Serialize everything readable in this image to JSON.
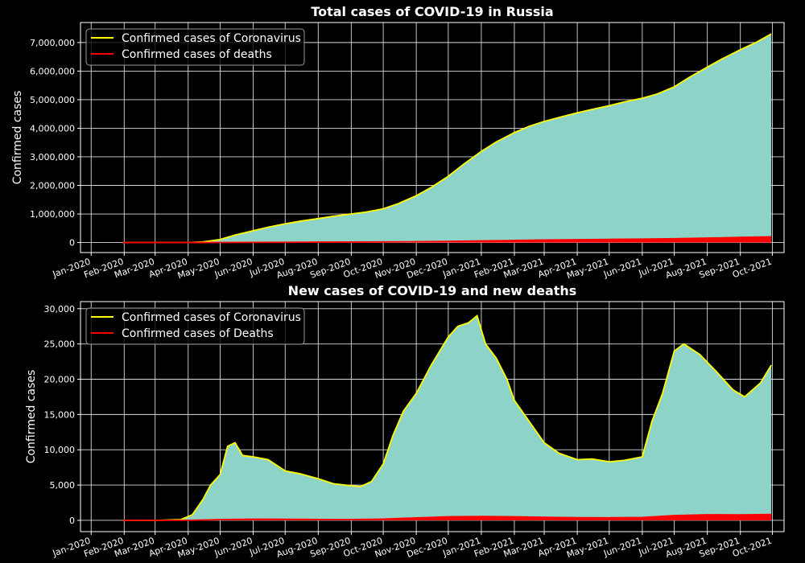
{
  "chart_data": [
    {
      "type": "area",
      "title": "Total cases of COVID-19 in Russia",
      "xlabel": "",
      "ylabel": "Confirmed cases",
      "x_ticks": [
        "Jan-2020",
        "Feb-2020",
        "Mar-2020",
        "Apr-2020",
        "May-2020",
        "Jun-2020",
        "Jul-2020",
        "Aug-2020",
        "Sep-2020",
        "Oct-2020",
        "Nov-2020",
        "Dec-2020",
        "Jan-2021",
        "Feb-2021",
        "Mar-2021",
        "Apr-2021",
        "May-2021",
        "Jun-2021",
        "Jul-2021",
        "Aug-2021",
        "Sep-2021",
        "Oct-2021"
      ],
      "y_ticks": [
        "0",
        "1,000,000",
        "2,000,000",
        "3,000,000",
        "4,000,000",
        "5,000,000",
        "6,000,000",
        "7,000,000"
      ],
      "ylim": [
        -350000,
        7700000
      ],
      "xlim": [
        "2019-12-22",
        "2021-10-12"
      ],
      "grid": true,
      "legend_position": "top-left",
      "series": [
        {
          "name": "Confirmed cases of Coronavirus",
          "color": "#ffff00",
          "fill": "#8dd3c7",
          "points": [
            [
              "2020-01-31",
              0
            ],
            [
              "2020-03-01",
              10
            ],
            [
              "2020-04-01",
              2800
            ],
            [
              "2020-04-15",
              24000
            ],
            [
              "2020-05-01",
              106000
            ],
            [
              "2020-05-15",
              262000
            ],
            [
              "2020-06-01",
              415000
            ],
            [
              "2020-06-15",
              537000
            ],
            [
              "2020-07-01",
              655000
            ],
            [
              "2020-07-15",
              746000
            ],
            [
              "2020-08-01",
              840000
            ],
            [
              "2020-08-15",
              918000
            ],
            [
              "2020-09-01",
              1000000
            ],
            [
              "2020-09-15",
              1069000
            ],
            [
              "2020-10-01",
              1180000
            ],
            [
              "2020-10-15",
              1360000
            ],
            [
              "2020-11-01",
              1640000
            ],
            [
              "2020-11-15",
              1930000
            ],
            [
              "2020-12-01",
              2320000
            ],
            [
              "2020-12-15",
              2730000
            ],
            [
              "2021-01-01",
              3190000
            ],
            [
              "2021-01-15",
              3520000
            ],
            [
              "2021-02-01",
              3850000
            ],
            [
              "2021-02-15",
              4070000
            ],
            [
              "2021-03-01",
              4240000
            ],
            [
              "2021-03-15",
              4380000
            ],
            [
              "2021-04-01",
              4540000
            ],
            [
              "2021-04-15",
              4660000
            ],
            [
              "2021-05-01",
              4790000
            ],
            [
              "2021-05-15",
              4920000
            ],
            [
              "2021-06-01",
              5050000
            ],
            [
              "2021-06-15",
              5200000
            ],
            [
              "2021-07-01",
              5450000
            ],
            [
              "2021-07-15",
              5780000
            ],
            [
              "2021-08-01",
              6140000
            ],
            [
              "2021-08-15",
              6430000
            ],
            [
              "2021-09-01",
              6750000
            ],
            [
              "2021-09-15",
              6990000
            ],
            [
              "2021-09-30",
              7300000
            ]
          ]
        },
        {
          "name": "Confirmed cases of deaths",
          "color": "#ff0000",
          "fill": "#ff0000",
          "points": [
            [
              "2020-01-31",
              0
            ],
            [
              "2020-04-01",
              20
            ],
            [
              "2020-05-01",
              1000
            ],
            [
              "2020-06-01",
              5000
            ],
            [
              "2020-07-01",
              9500
            ],
            [
              "2020-08-01",
              14000
            ],
            [
              "2020-09-01",
              17500
            ],
            [
              "2020-10-01",
              21000
            ],
            [
              "2020-11-01",
              28500
            ],
            [
              "2020-12-01",
              40500
            ],
            [
              "2021-01-01",
              58000
            ],
            [
              "2021-02-01",
              73500
            ],
            [
              "2021-03-01",
              87500
            ],
            [
              "2021-04-01",
              100000
            ],
            [
              "2021-05-01",
              111000
            ],
            [
              "2021-06-01",
              121000
            ],
            [
              "2021-07-01",
              135000
            ],
            [
              "2021-08-01",
              155000
            ],
            [
              "2021-09-01",
              179000
            ],
            [
              "2021-09-30",
              201000
            ]
          ]
        }
      ]
    },
    {
      "type": "area",
      "title": "New cases of COVID-19 and new deaths",
      "xlabel": "",
      "ylabel": "Confirmed cases",
      "x_ticks": [
        "Jan-2020",
        "Feb-2020",
        "Mar-2020",
        "Apr-2020",
        "May-2020",
        "Jun-2020",
        "Jul-2020",
        "Aug-2020",
        "Sep-2020",
        "Oct-2020",
        "Nov-2020",
        "Dec-2020",
        "Jan-2021",
        "Feb-2021",
        "Mar-2021",
        "Apr-2021",
        "May-2021",
        "Jun-2021",
        "Jul-2021",
        "Aug-2021",
        "Sep-2021",
        "Oct-2021"
      ],
      "y_ticks": [
        "0",
        "5,000",
        "10,000",
        "15,000",
        "20,000",
        "25,000",
        "30,000"
      ],
      "ylim": [
        -1600,
        31000
      ],
      "xlim": [
        "2019-12-22",
        "2021-10-12"
      ],
      "grid": true,
      "legend_position": "top-left",
      "series": [
        {
          "name": "Confirmed cases of Coronavirus",
          "color": "#ffff00",
          "fill": "#8dd3c7",
          "points": [
            [
              "2020-01-31",
              0
            ],
            [
              "2020-03-01",
              0
            ],
            [
              "2020-03-25",
              100
            ],
            [
              "2020-04-05",
              800
            ],
            [
              "2020-04-15",
              3000
            ],
            [
              "2020-04-22",
              5000
            ],
            [
              "2020-05-01",
              6500
            ],
            [
              "2020-05-08",
              10500
            ],
            [
              "2020-05-15",
              11000
            ],
            [
              "2020-05-22",
              9200
            ],
            [
              "2020-06-01",
              9000
            ],
            [
              "2020-06-15",
              8600
            ],
            [
              "2020-07-01",
              7000
            ],
            [
              "2020-07-15",
              6600
            ],
            [
              "2020-08-01",
              5900
            ],
            [
              "2020-08-15",
              5200
            ],
            [
              "2020-09-01",
              4900
            ],
            [
              "2020-09-10",
              4800
            ],
            [
              "2020-09-20",
              5500
            ],
            [
              "2020-10-01",
              8000
            ],
            [
              "2020-10-10",
              12000
            ],
            [
              "2020-10-20",
              15500
            ],
            [
              "2020-11-01",
              18000
            ],
            [
              "2020-11-15",
              22000
            ],
            [
              "2020-12-01",
              26000
            ],
            [
              "2020-12-10",
              27500
            ],
            [
              "2020-12-20",
              28000
            ],
            [
              "2020-12-28",
              29000
            ],
            [
              "2021-01-05",
              25000
            ],
            [
              "2021-01-15",
              23000
            ],
            [
              "2021-01-25",
              20000
            ],
            [
              "2021-02-01",
              17000
            ],
            [
              "2021-02-15",
              14000
            ],
            [
              "2021-03-01",
              11000
            ],
            [
              "2021-03-15",
              9500
            ],
            [
              "2021-04-01",
              8600
            ],
            [
              "2021-04-15",
              8700
            ],
            [
              "2021-05-01",
              8300
            ],
            [
              "2021-05-15",
              8500
            ],
            [
              "2021-06-01",
              9000
            ],
            [
              "2021-06-10",
              14000
            ],
            [
              "2021-06-20",
              18000
            ],
            [
              "2021-07-01",
              24000
            ],
            [
              "2021-07-10",
              25000
            ],
            [
              "2021-07-25",
              23500
            ],
            [
              "2021-08-10",
              21000
            ],
            [
              "2021-08-25",
              18500
            ],
            [
              "2021-09-05",
              17500
            ],
            [
              "2021-09-20",
              19500
            ],
            [
              "2021-09-30",
              22000
            ]
          ]
        },
        {
          "name": "Confirmed cases of Deaths",
          "color": "#ff0000",
          "fill": "#ff0000",
          "points": [
            [
              "2020-01-31",
              0
            ],
            [
              "2020-04-01",
              10
            ],
            [
              "2020-05-01",
              100
            ],
            [
              "2020-06-01",
              160
            ],
            [
              "2020-07-01",
              150
            ],
            [
              "2020-08-01",
              120
            ],
            [
              "2020-09-01",
              110
            ],
            [
              "2020-10-01",
              180
            ],
            [
              "2020-11-01",
              350
            ],
            [
              "2020-12-01",
              500
            ],
            [
              "2021-01-01",
              550
            ],
            [
              "2021-02-01",
              500
            ],
            [
              "2021-03-01",
              430
            ],
            [
              "2021-04-01",
              380
            ],
            [
              "2021-05-01",
              370
            ],
            [
              "2021-06-01",
              400
            ],
            [
              "2021-07-01",
              680
            ],
            [
              "2021-08-01",
              790
            ],
            [
              "2021-09-01",
              780
            ],
            [
              "2021-09-30",
              840
            ]
          ]
        }
      ]
    }
  ]
}
